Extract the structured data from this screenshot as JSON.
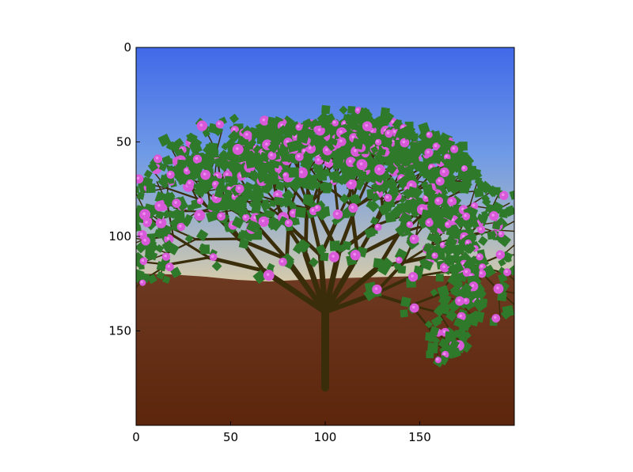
{
  "figure": {
    "x_ticks": [
      "0",
      "50",
      "100",
      "150"
    ],
    "y_ticks": [
      "0",
      "50",
      "100",
      "150"
    ],
    "x_range": [
      0,
      200
    ],
    "y_range": [
      0,
      200
    ],
    "y_inverted": true
  },
  "scene": {
    "sky_top_color": "#4169e8",
    "sky_mid_color": "#7aa2e0",
    "sky_horizon_color": "#d4c9a8",
    "ground_top_color": "#6e3a22",
    "ground_bottom_color": "#5f2810",
    "trunk_color": "#3a2d0a",
    "leaf_color": "#2e7a2a",
    "blossom_color": "#d85ad8",
    "blossom_highlight": "#f08cf0"
  }
}
